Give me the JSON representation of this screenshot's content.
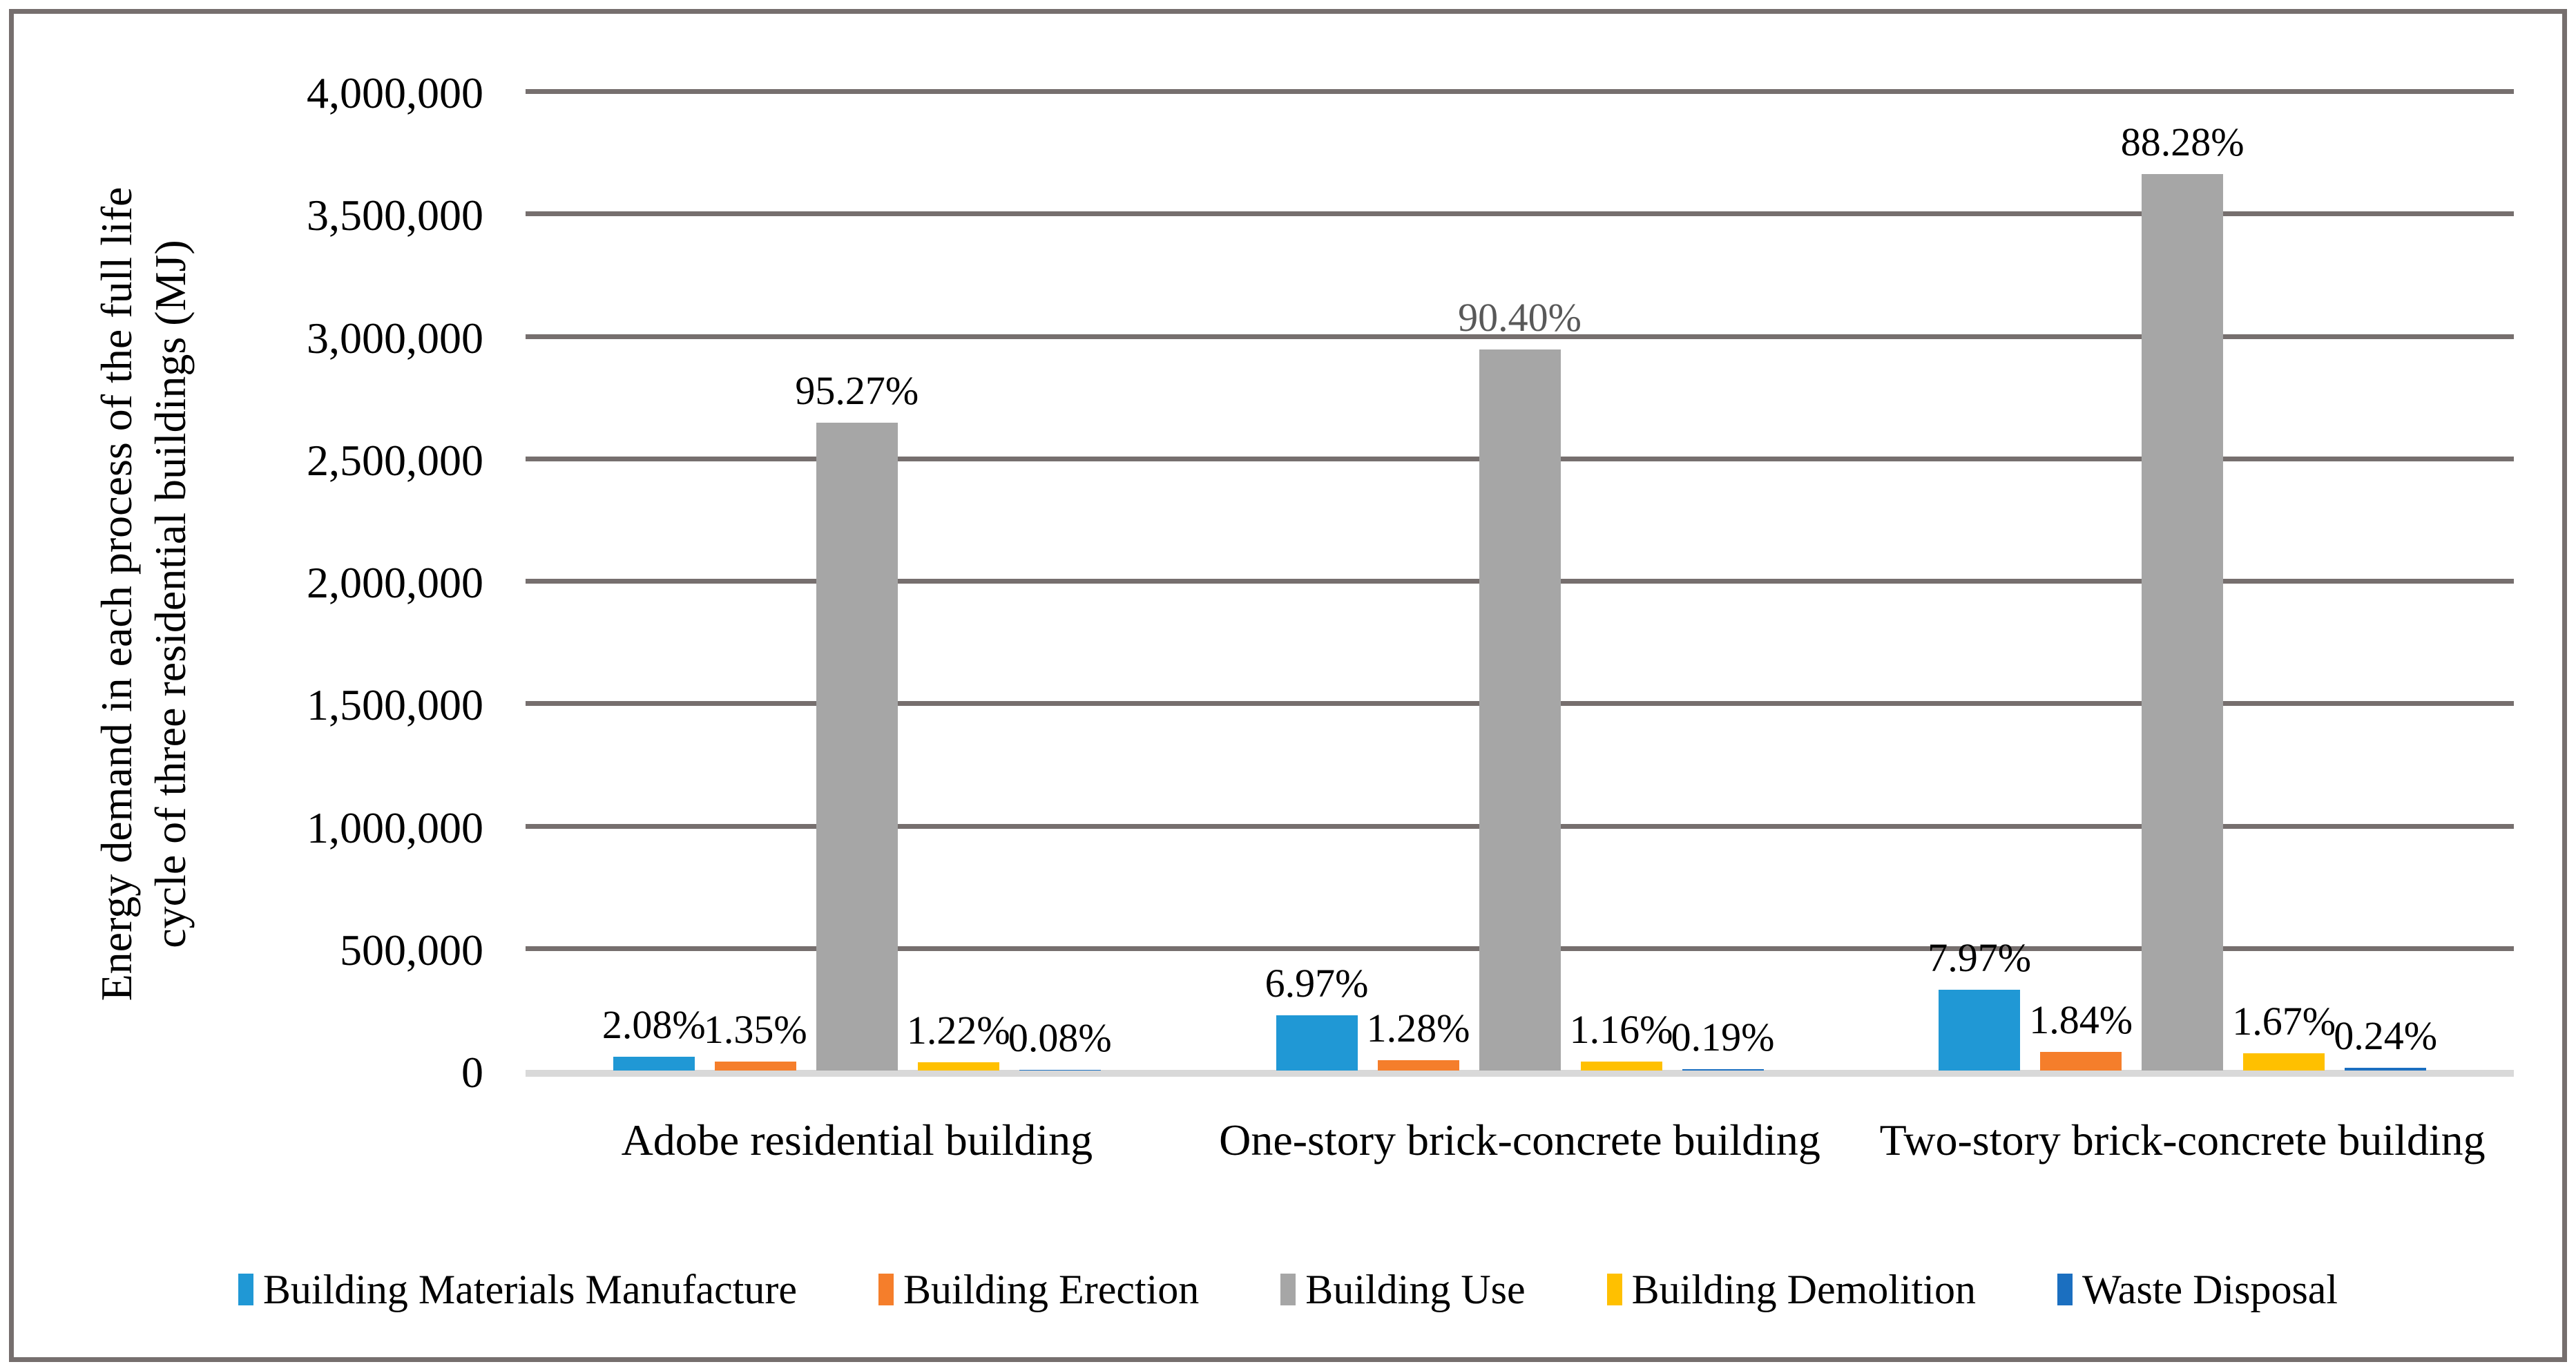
{
  "chart_data": {
    "type": "bar",
    "title": "",
    "ylabel": "Energy demand in each process of the full life cycle of three residential buildings (MJ)",
    "ylabel_lines": [
      "Energy demand in each process of the full life",
      "cycle of three residential buildings (MJ)"
    ],
    "xlabel": "",
    "ylim": [
      0,
      4000000
    ],
    "ytick_step": 500000,
    "yticks": [
      {
        "value": 0,
        "label": "0"
      },
      {
        "value": 500000,
        "label": "500,000"
      },
      {
        "value": 1000000,
        "label": "1,000,000"
      },
      {
        "value": 1500000,
        "label": "1,500,000"
      },
      {
        "value": 2000000,
        "label": "2,000,000"
      },
      {
        "value": 2500000,
        "label": "2,500,000"
      },
      {
        "value": 3000000,
        "label": "3,000,000"
      },
      {
        "value": 3500000,
        "label": "3,500,000"
      },
      {
        "value": 4000000,
        "label": "4,000,000"
      }
    ],
    "grid": true,
    "legend_position": "bottom",
    "categories": [
      "Adobe residential building",
      "One-story brick-concrete building",
      "Two-story brick-concrete building"
    ],
    "series": [
      {
        "name": "Building Materials Manufacture",
        "color": "#2098D5",
        "values": [
          57800,
          227000,
          330500
        ],
        "percent_labels": [
          "2.08%",
          "6.97%",
          "7.97%"
        ],
        "label_colors": [
          "#000000",
          "#000000",
          "#000000"
        ]
      },
      {
        "name": "Building Erection",
        "color": "#F57E2B",
        "values": [
          37500,
          41700,
          76300
        ],
        "percent_labels": [
          "1.35%",
          "1.28%",
          "1.84%"
        ],
        "label_colors": [
          "#000000",
          "#000000",
          "#000000"
        ]
      },
      {
        "name": "Building Use",
        "color": "#A6A6A6",
        "values": [
          2646000,
          2945000,
          3661000
        ],
        "percent_labels": [
          "95.27%",
          "90.40%",
          "88.28%"
        ],
        "label_colors": [
          "#000000",
          "#595959",
          "#000000"
        ]
      },
      {
        "name": "Building Demolition",
        "color": "#FFC000",
        "values": [
          33900,
          37800,
          69300
        ],
        "percent_labels": [
          "1.22%",
          "1.16%",
          "1.67%"
        ],
        "label_colors": [
          "#000000",
          "#000000",
          "#000000"
        ]
      },
      {
        "name": "Waste Disposal",
        "color": "#1B6FC0",
        "values": [
          2200,
          6200,
          10000
        ],
        "percent_labels": [
          "0.08%",
          "0.19%",
          "0.24%"
        ],
        "label_colors": [
          "#000000",
          "#000000",
          "#000000"
        ]
      }
    ],
    "colors": {
      "gridline": "#766F6E",
      "frame_border": "#766F6E",
      "axis_baseline": "#D9D9D9",
      "text": "#000000",
      "muted_label": "#595959"
    }
  }
}
